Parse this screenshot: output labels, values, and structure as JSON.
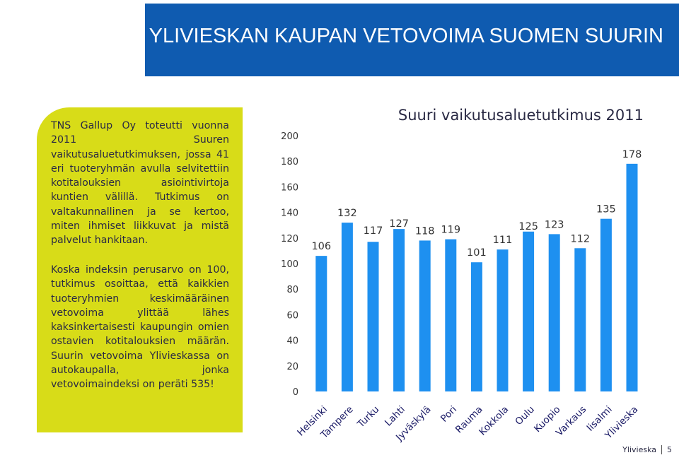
{
  "header": {
    "title": "YLIVIESKAN KAUPAN VETOVOIMA SUOMEN SUURIN"
  },
  "text_panel": {
    "paragraph1": "TNS Gallup Oy toteutti vuonna 2011 Suuren vaikutusaluetutkimuksen, jossa 41 eri tuoteryhmän avulla selvitettiin kotitalouksien asiointivirtoja kuntien välillä. Tutkimus on valtakunnallinen ja se kertoo, miten ihmiset liikkuvat ja mistä palvelut hankitaan.",
    "paragraph2": "Koska indeksin perusarvo on 100, tutkimus osoittaa, että kaikkien tuoteryhmien keskimääräinen vetovoima ylittää lähes kaksinkertaisesti kaupungin omien ostavien kotitalouksien määrän. Suurin vetovoima Ylivieskassa on autokaupalla, jonka vetovoimaindeksi on peräti 535!"
  },
  "chart_data": {
    "type": "bar",
    "title": "Suuri vaikutusaluetutkimus 2011",
    "categories": [
      "Helsinki",
      "Tampere",
      "Turku",
      "Lahti",
      "Jyväskylä",
      "Pori",
      "Rauma",
      "Kokkola",
      "Oulu",
      "Kuopio",
      "Varkaus",
      "Iisalmi",
      "Ylivieska"
    ],
    "values": [
      106,
      132,
      117,
      127,
      118,
      119,
      101,
      111,
      125,
      123,
      112,
      135,
      178
    ],
    "ylim": [
      0,
      200
    ],
    "yticks": [
      0,
      20,
      40,
      60,
      80,
      100,
      120,
      140,
      160,
      180,
      200
    ],
    "grid": false,
    "legend": "none",
    "bar_color": "#1e90f0"
  },
  "footer": {
    "label": "Ylivieska",
    "page": "5"
  }
}
